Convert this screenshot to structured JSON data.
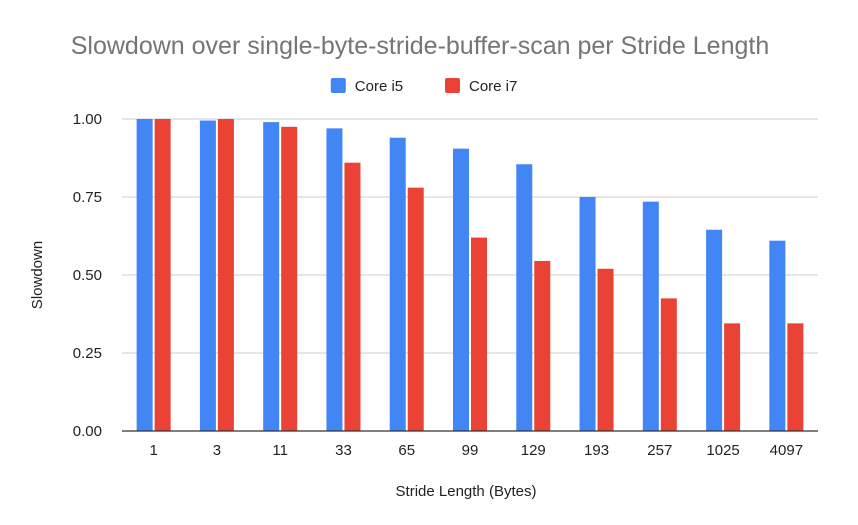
{
  "chart_data": {
    "type": "bar",
    "title": "Slowdown over single-byte-stride-buffer-scan per Stride Length",
    "xlabel": "Stride Length (Bytes)",
    "ylabel": "Slowdown",
    "ylim": [
      0,
      1.0
    ],
    "yticks": [
      "0.00",
      "0.25",
      "0.50",
      "0.75",
      "1.00"
    ],
    "ytick_values": [
      0,
      0.25,
      0.5,
      0.75,
      1.0
    ],
    "grid": true,
    "legend": "top-center",
    "categories": [
      "1",
      "3",
      "11",
      "33",
      "65",
      "99",
      "129",
      "193",
      "257",
      "1025",
      "4097"
    ],
    "series": [
      {
        "name": "Core i5",
        "color": "#4285f4",
        "values": [
          1.0,
          0.995,
          0.99,
          0.97,
          0.94,
          0.905,
          0.855,
          0.75,
          0.735,
          0.645,
          0.61
        ]
      },
      {
        "name": "Core i7",
        "color": "#ea4335",
        "values": [
          1.0,
          1.0,
          0.975,
          0.86,
          0.78,
          0.62,
          0.545,
          0.52,
          0.425,
          0.345,
          0.345
        ]
      }
    ]
  }
}
